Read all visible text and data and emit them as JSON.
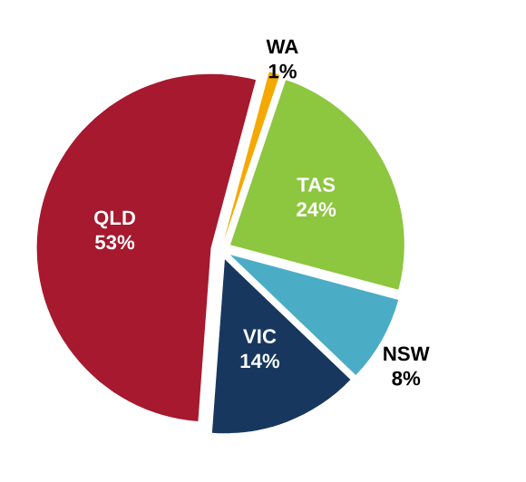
{
  "chart_data": {
    "type": "pie",
    "categories": [
      "WA",
      "TAS",
      "NSW",
      "VIC",
      "QLD"
    ],
    "values": [
      1,
      24,
      8,
      14,
      53
    ],
    "value_labels": [
      "1%",
      "24%",
      "8%",
      "14%",
      "53%"
    ],
    "colors": [
      "#f5a800",
      "#8dc63f",
      "#4bacc6",
      "#17375e",
      "#a6192e"
    ],
    "legend": false
  }
}
